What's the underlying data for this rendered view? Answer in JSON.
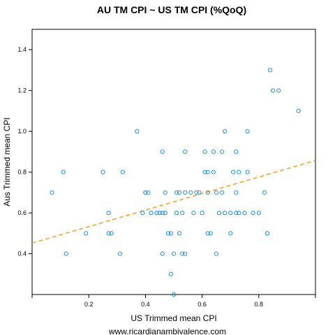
{
  "chart_data": {
    "type": "scatter",
    "title": "AU TM CPI ~ US TM CPI (%QoQ)",
    "xlabel": "US Trimmed mean CPI",
    "ylabel": "Aus Trimmed mean CPI",
    "xlim": [
      0.0,
      1.0
    ],
    "ylim": [
      0.2,
      1.5
    ],
    "xticks": [
      0.2,
      0.4,
      0.6,
      0.8
    ],
    "yticks": [
      0.4,
      0.6,
      0.8,
      1.0,
      1.2,
      1.4
    ],
    "grid": false,
    "point_color": "#1f8fe8",
    "fit_line_color": "#f5a01e",
    "fit_line": {
      "x": [
        0.0,
        1.0
      ],
      "y": [
        0.452,
        0.857
      ]
    },
    "points": [
      [
        0.07,
        0.7
      ],
      [
        0.11,
        0.8
      ],
      [
        0.12,
        0.4
      ],
      [
        0.19,
        0.5
      ],
      [
        0.25,
        0.8
      ],
      [
        0.27,
        0.6
      ],
      [
        0.27,
        0.5
      ],
      [
        0.28,
        0.5
      ],
      [
        0.31,
        0.4
      ],
      [
        0.32,
        0.8
      ],
      [
        0.37,
        1.0
      ],
      [
        0.39,
        0.6
      ],
      [
        0.4,
        0.7
      ],
      [
        0.4,
        0.7
      ],
      [
        0.41,
        0.7
      ],
      [
        0.42,
        0.6
      ],
      [
        0.44,
        0.6
      ],
      [
        0.45,
        0.6
      ],
      [
        0.46,
        0.9
      ],
      [
        0.46,
        0.6
      ],
      [
        0.46,
        0.4
      ],
      [
        0.47,
        0.7
      ],
      [
        0.47,
        0.6
      ],
      [
        0.48,
        0.5
      ],
      [
        0.49,
        0.5
      ],
      [
        0.49,
        0.3
      ],
      [
        0.5,
        0.2
      ],
      [
        0.5,
        0.4
      ],
      [
        0.51,
        0.6
      ],
      [
        0.51,
        0.7
      ],
      [
        0.52,
        0.7
      ],
      [
        0.52,
        0.5
      ],
      [
        0.53,
        0.4
      ],
      [
        0.53,
        0.6
      ],
      [
        0.54,
        0.9
      ],
      [
        0.54,
        0.7
      ],
      [
        0.54,
        0.4
      ],
      [
        0.56,
        0.7
      ],
      [
        0.57,
        0.6
      ],
      [
        0.58,
        0.7
      ],
      [
        0.59,
        0.7
      ],
      [
        0.6,
        0.6
      ],
      [
        0.61,
        0.9
      ],
      [
        0.61,
        0.8
      ],
      [
        0.62,
        0.8
      ],
      [
        0.62,
        0.7
      ],
      [
        0.62,
        0.5
      ],
      [
        0.63,
        0.5
      ],
      [
        0.64,
        0.8
      ],
      [
        0.64,
        0.9
      ],
      [
        0.65,
        0.7
      ],
      [
        0.65,
        0.4
      ],
      [
        0.66,
        0.6
      ],
      [
        0.67,
        0.9
      ],
      [
        0.67,
        0.7
      ],
      [
        0.68,
        1.0
      ],
      [
        0.68,
        0.6
      ],
      [
        0.7,
        0.6
      ],
      [
        0.7,
        0.5
      ],
      [
        0.71,
        0.8
      ],
      [
        0.72,
        0.9
      ],
      [
        0.72,
        0.7
      ],
      [
        0.72,
        0.6
      ],
      [
        0.73,
        0.6
      ],
      [
        0.73,
        0.8
      ],
      [
        0.75,
        0.6
      ],
      [
        0.76,
        1.0
      ],
      [
        0.76,
        0.8
      ],
      [
        0.78,
        0.6
      ],
      [
        0.8,
        0.6
      ],
      [
        0.82,
        0.7
      ],
      [
        0.83,
        0.5
      ],
      [
        0.84,
        1.3
      ],
      [
        0.85,
        1.2
      ],
      [
        0.87,
        1.2
      ],
      [
        0.94,
        1.1
      ]
    ]
  },
  "caption": "www.ricardianambivalence.com"
}
